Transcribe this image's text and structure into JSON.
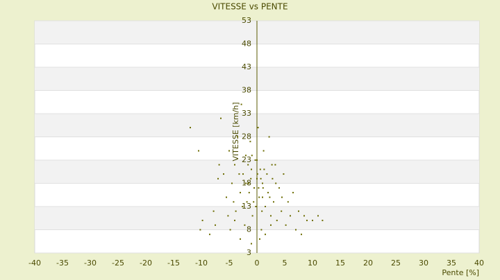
{
  "chart_data": {
    "type": "scatter",
    "title": "VITESSE vs PENTE",
    "x_label": "Pente [%]",
    "y_label": "VITESSE [km/h]",
    "color": "#6b6b00",
    "xlim": [
      -40,
      40
    ],
    "xticks": [
      -40,
      -35,
      -30,
      -25,
      -20,
      -15,
      -10,
      -5,
      0,
      5,
      10,
      15,
      20,
      25,
      30,
      35,
      40
    ],
    "ylim": [
      3,
      53
    ],
    "yticks": [
      3,
      8,
      13,
      18,
      23,
      28,
      33,
      38,
      43,
      48,
      53
    ],
    "grid": true,
    "x": [
      -12,
      -10.5,
      -9.8,
      -10.2,
      -8.5,
      -7.8,
      -7,
      -6.5,
      -6,
      -5.5,
      -5,
      -4.8,
      -4.5,
      -4,
      -3.8,
      -3.5,
      -3,
      -2.8,
      -2.5,
      -2.2,
      -2,
      -1.8,
      -1.5,
      -1.2,
      -1,
      -0.8,
      -0.5,
      -0.3,
      0,
      0.2,
      0.4,
      0.6,
      0.8,
      1,
      1.2,
      1.5,
      1.8,
      2,
      2.2,
      2.5,
      2.8,
      3,
      3.3,
      3.6,
      4,
      4.4,
      4.8,
      5.2,
      5.6,
      6,
      6.5,
      7,
      7.5,
      8,
      8.5,
      9,
      10,
      11,
      11.8,
      -6.8,
      -5.2,
      -4.2,
      -3.2,
      -2.6,
      -1.6,
      -0.6,
      0.3,
      1.3,
      2.3,
      3.4,
      4.5,
      -7.5,
      -3,
      -1,
      0.5,
      1.5,
      2.5,
      -2,
      0,
      1,
      -4,
      -1.4,
      0.7,
      2.7,
      -0.2,
      0.1,
      -1.1,
      1.1,
      -0.9,
      0.9
    ],
    "y": [
      30,
      25,
      10,
      8,
      7,
      12,
      19,
      32,
      20,
      15,
      25,
      8,
      18,
      22,
      12,
      28,
      16,
      35,
      20,
      9,
      24,
      14,
      18,
      27,
      21,
      11,
      17,
      23,
      19,
      30,
      15,
      21,
      8,
      18,
      25,
      13,
      20,
      16,
      28,
      11,
      19,
      14,
      22,
      10,
      17,
      12,
      20,
      9,
      14,
      11,
      16,
      8,
      12,
      7,
      11,
      10,
      10,
      11,
      10,
      22,
      11,
      14,
      20,
      13,
      22,
      14,
      17,
      21,
      15,
      18,
      15,
      9,
      6,
      5,
      6,
      7,
      9,
      18,
      23,
      15,
      10,
      16,
      19,
      22,
      13,
      20,
      19,
      17,
      24,
      12
    ]
  }
}
